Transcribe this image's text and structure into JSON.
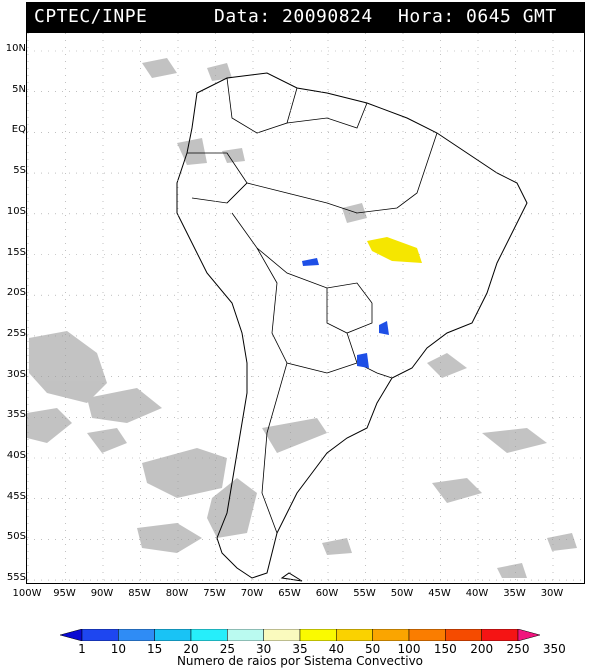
{
  "header": {
    "source": "CPTEC/INPE",
    "date_text": "Data: 20090824",
    "hour_text": "Hora: 0645 GMT"
  },
  "map": {
    "lat_labels": [
      "10N",
      "5N",
      "EQ",
      "5S",
      "10S",
      "15S",
      "20S",
      "25S",
      "30S",
      "35S",
      "40S",
      "45S",
      "50S",
      "55S"
    ],
    "lon_labels": [
      "100W",
      "95W",
      "90W",
      "85W",
      "80W",
      "75W",
      "70W",
      "65W",
      "60W",
      "55W",
      "50W",
      "45W",
      "40W",
      "35W",
      "30W"
    ],
    "colors": {
      "land": "#ffffff",
      "border": "#000000",
      "cloud": "#b8b8b8",
      "grid": "#9a9a9a"
    },
    "lightning_cells": [
      {
        "label": "1",
        "color": "#1e4fe6"
      },
      {
        "label": "40",
        "color": "#f5e600"
      }
    ]
  },
  "legend": {
    "title": "Numero de raios por Sistema Convectivo",
    "ticks": [
      "1",
      "10",
      "15",
      "20",
      "25",
      "30",
      "35",
      "40",
      "50",
      "100",
      "150",
      "200",
      "250",
      "350"
    ],
    "colors": [
      "#0a0ad2",
      "#1e46f0",
      "#2f8cf5",
      "#19c3f5",
      "#26eefa",
      "#bafaf0",
      "#fafabe",
      "#fafa00",
      "#fad200",
      "#faa500",
      "#fa7d00",
      "#f54b00",
      "#f51414",
      "#f0147d"
    ]
  }
}
